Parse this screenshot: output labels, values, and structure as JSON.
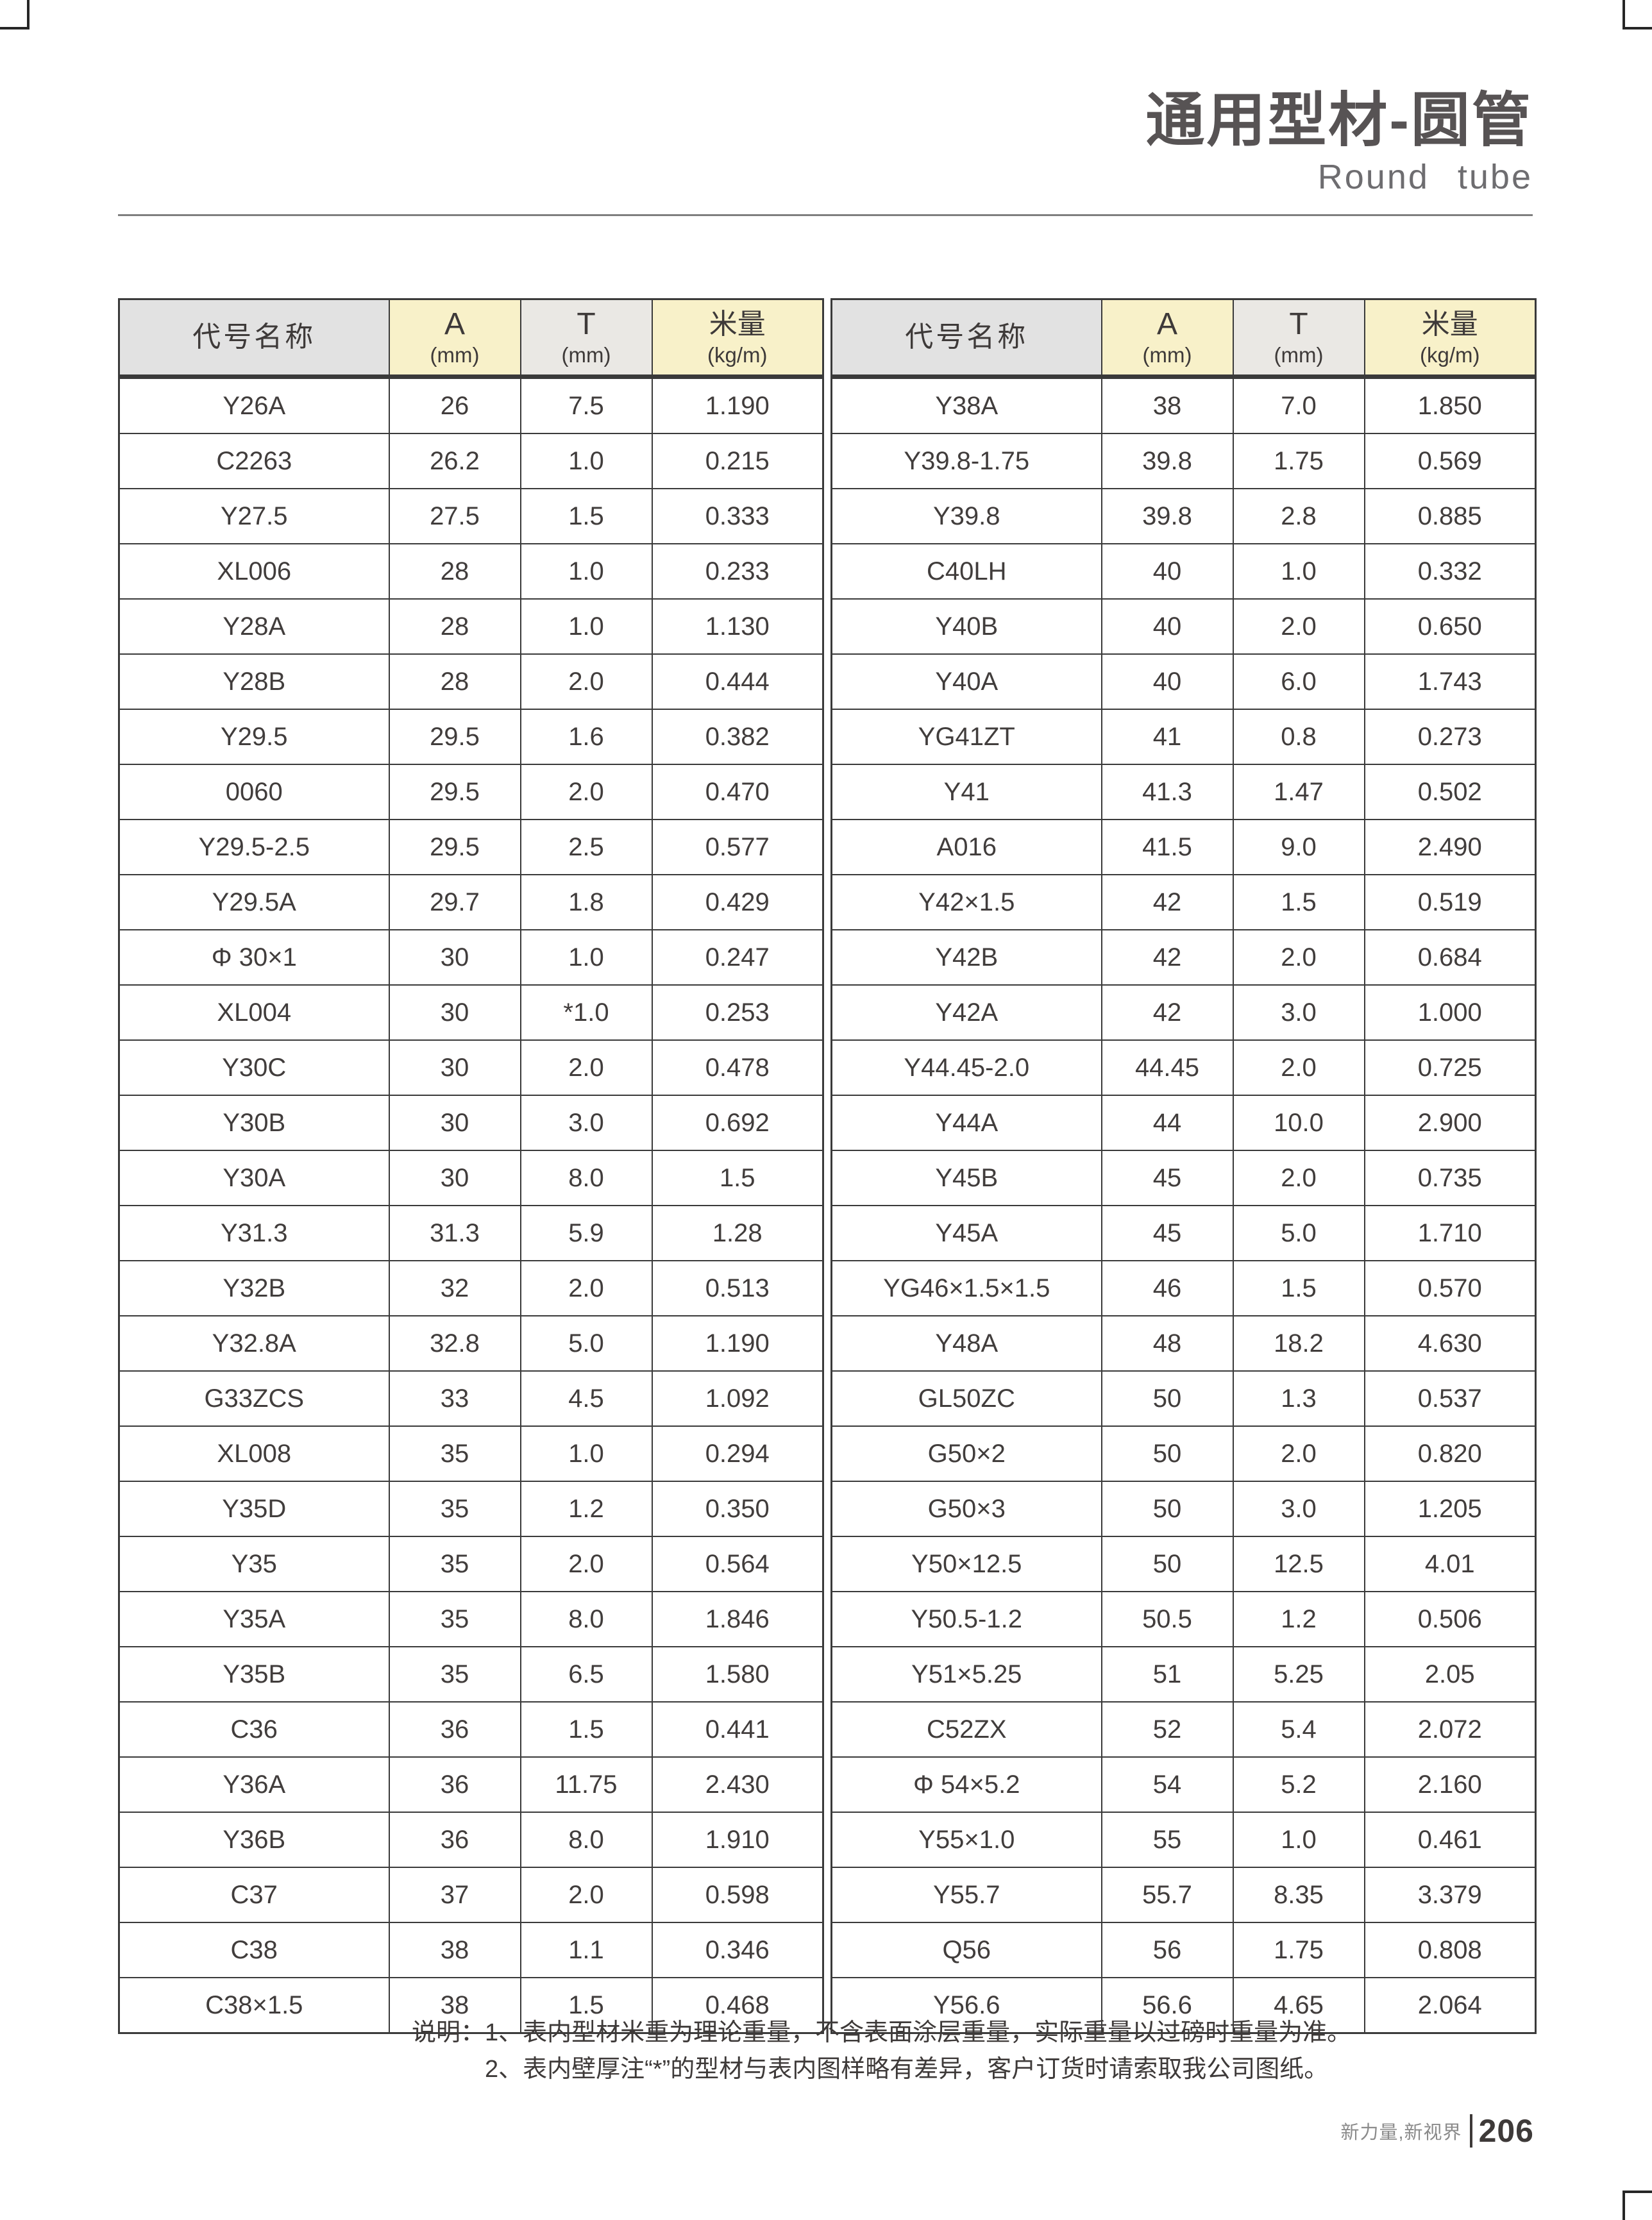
{
  "page": {
    "title_zh": "通用型材-圆管",
    "title_en": "Round tube",
    "notes": {
      "line1": "说明：1、表内型材米重为理论重量，不含表面涂层重量，实际重量以过磅时重量为准。",
      "line2": "2、表内壁厚注“*”的型材与表内图样略有差异，客户订货时请索取我公司图纸。"
    },
    "footer": {
      "brand": "新力量,新视界",
      "page_number": "206"
    }
  },
  "colors": {
    "row_name_yellow": "#fbf5d3",
    "row_name_gray": "#e6e6e6",
    "header_yellow": "#f8f1c9",
    "header_gray": "#e2e2e2",
    "border": "#3a3a3a",
    "title_gray": "#575354"
  },
  "columns": {
    "name": "代号名称",
    "a": "A",
    "a_unit": "(mm)",
    "t": "T",
    "t_unit": "(mm)",
    "m": "米量",
    "m_unit": "(kg/m)"
  },
  "tables": [
    {
      "side": "left",
      "rows": [
        [
          "Y26A",
          "26",
          "7.5",
          "1.190"
        ],
        [
          "C2263",
          "26.2",
          "1.0",
          "0.215"
        ],
        [
          "Y27.5",
          "27.5",
          "1.5",
          "0.333"
        ],
        [
          "XL006",
          "28",
          "1.0",
          "0.233"
        ],
        [
          "Y28A",
          "28",
          "1.0",
          "1.130"
        ],
        [
          "Y28B",
          "28",
          "2.0",
          "0.444"
        ],
        [
          "Y29.5",
          "29.5",
          "1.6",
          "0.382"
        ],
        [
          "0060",
          "29.5",
          "2.0",
          "0.470"
        ],
        [
          "Y29.5-2.5",
          "29.5",
          "2.5",
          "0.577"
        ],
        [
          "Y29.5A",
          "29.7",
          "1.8",
          "0.429"
        ],
        [
          "Φ 30×1",
          "30",
          "1.0",
          "0.247"
        ],
        [
          "XL004",
          "30",
          "*1.0",
          "0.253"
        ],
        [
          "Y30C",
          "30",
          "2.0",
          "0.478"
        ],
        [
          "Y30B",
          "30",
          "3.0",
          "0.692"
        ],
        [
          "Y30A",
          "30",
          "8.0",
          "1.5"
        ],
        [
          "Y31.3",
          "31.3",
          "5.9",
          "1.28"
        ],
        [
          "Y32B",
          "32",
          "2.0",
          "0.513"
        ],
        [
          "Y32.8A",
          "32.8",
          "5.0",
          "1.190"
        ],
        [
          "G33ZCS",
          "33",
          "4.5",
          "1.092"
        ],
        [
          "XL008",
          "35",
          "1.0",
          "0.294"
        ],
        [
          "Y35D",
          "35",
          "1.2",
          "0.350"
        ],
        [
          "Y35",
          "35",
          "2.0",
          "0.564"
        ],
        [
          "Y35A",
          "35",
          "8.0",
          "1.846"
        ],
        [
          "Y35B",
          "35",
          "6.5",
          "1.580"
        ],
        [
          "C36",
          "36",
          "1.5",
          "0.441"
        ],
        [
          "Y36A",
          "36",
          "11.75",
          "2.430"
        ],
        [
          "Y36B",
          "36",
          "8.0",
          "1.910"
        ],
        [
          "C37",
          "37",
          "2.0",
          "0.598"
        ],
        [
          "C38",
          "38",
          "1.1",
          "0.346"
        ],
        [
          "C38×1.5",
          "38",
          "1.5",
          "0.468"
        ]
      ]
    },
    {
      "side": "right",
      "rows": [
        [
          "Y38A",
          "38",
          "7.0",
          "1.850"
        ],
        [
          "Y39.8-1.75",
          "39.8",
          "1.75",
          "0.569"
        ],
        [
          "Y39.8",
          "39.8",
          "2.8",
          "0.885"
        ],
        [
          "C40LH",
          "40",
          "1.0",
          "0.332"
        ],
        [
          "Y40B",
          "40",
          "2.0",
          "0.650"
        ],
        [
          "Y40A",
          "40",
          "6.0",
          "1.743"
        ],
        [
          "YG41ZT",
          "41",
          "0.8",
          "0.273"
        ],
        [
          "Y41",
          "41.3",
          "1.47",
          "0.502"
        ],
        [
          "A016",
          "41.5",
          "9.0",
          "2.490"
        ],
        [
          "Y42×1.5",
          "42",
          "1.5",
          "0.519"
        ],
        [
          "Y42B",
          "42",
          "2.0",
          "0.684"
        ],
        [
          "Y42A",
          "42",
          "3.0",
          "1.000"
        ],
        [
          "Y44.45-2.0",
          "44.45",
          "2.0",
          "0.725"
        ],
        [
          "Y44A",
          "44",
          "10.0",
          "2.900"
        ],
        [
          "Y45B",
          "45",
          "2.0",
          "0.735"
        ],
        [
          "Y45A",
          "45",
          "5.0",
          "1.710"
        ],
        [
          "YG46×1.5×1.5",
          "46",
          "1.5",
          "0.570"
        ],
        [
          "Y48A",
          "48",
          "18.2",
          "4.630"
        ],
        [
          "GL50ZC",
          "50",
          "1.3",
          "0.537"
        ],
        [
          "G50×2",
          "50",
          "2.0",
          "0.820"
        ],
        [
          "G50×3",
          "50",
          "3.0",
          "1.205"
        ],
        [
          "Y50×12.5",
          "50",
          "12.5",
          "4.01"
        ],
        [
          "Y50.5-1.2",
          "50.5",
          "1.2",
          "0.506"
        ],
        [
          "Y51×5.25",
          "51",
          "5.25",
          "2.05"
        ],
        [
          "C52ZX",
          "52",
          "5.4",
          "2.072"
        ],
        [
          "Φ 54×5.2",
          "54",
          "5.2",
          "2.160"
        ],
        [
          "Y55×1.0",
          "55",
          "1.0",
          "0.461"
        ],
        [
          "Y55.7",
          "55.7",
          "8.35",
          "3.379"
        ],
        [
          "Q56",
          "56",
          "1.75",
          "0.808"
        ],
        [
          "Y56.6",
          "56.6",
          "4.65",
          "2.064"
        ]
      ]
    }
  ]
}
